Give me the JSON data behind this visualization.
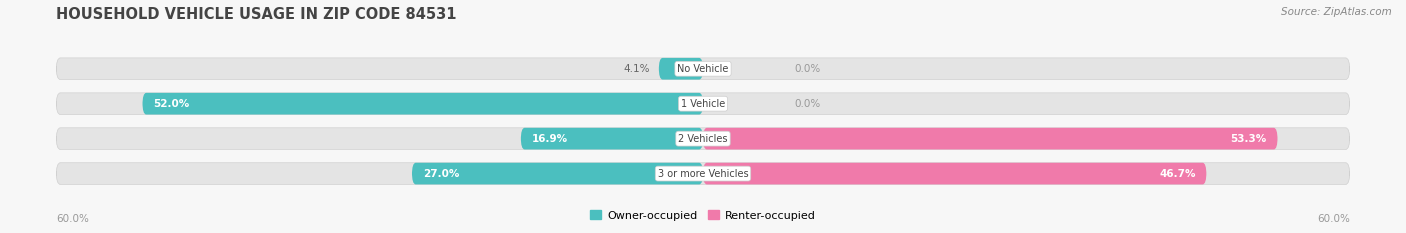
{
  "title": "HOUSEHOLD VEHICLE USAGE IN ZIP CODE 84531",
  "source": "Source: ZipAtlas.com",
  "categories": [
    "No Vehicle",
    "1 Vehicle",
    "2 Vehicles",
    "3 or more Vehicles"
  ],
  "owner_values": [
    4.1,
    52.0,
    16.9,
    27.0
  ],
  "renter_values": [
    0.0,
    0.0,
    53.3,
    46.7
  ],
  "owner_color": "#4bbfbf",
  "renter_color": "#f07aaa",
  "owner_label": "Owner-occupied",
  "renter_label": "Renter-occupied",
  "axis_max": 60.0,
  "axis_label_left": "60.0%",
  "axis_label_right": "60.0%",
  "bar_height": 0.62,
  "bg_color": "#f7f7f7",
  "bar_bg_color": "#e4e4e4",
  "title_color": "#444444",
  "source_color": "#888888",
  "value_label_color_dark": "#666666",
  "value_label_color_white": "#ffffff",
  "zero_label_color": "#999999",
  "category_label_color": "#444444",
  "separator_color": "#d0d0d0"
}
